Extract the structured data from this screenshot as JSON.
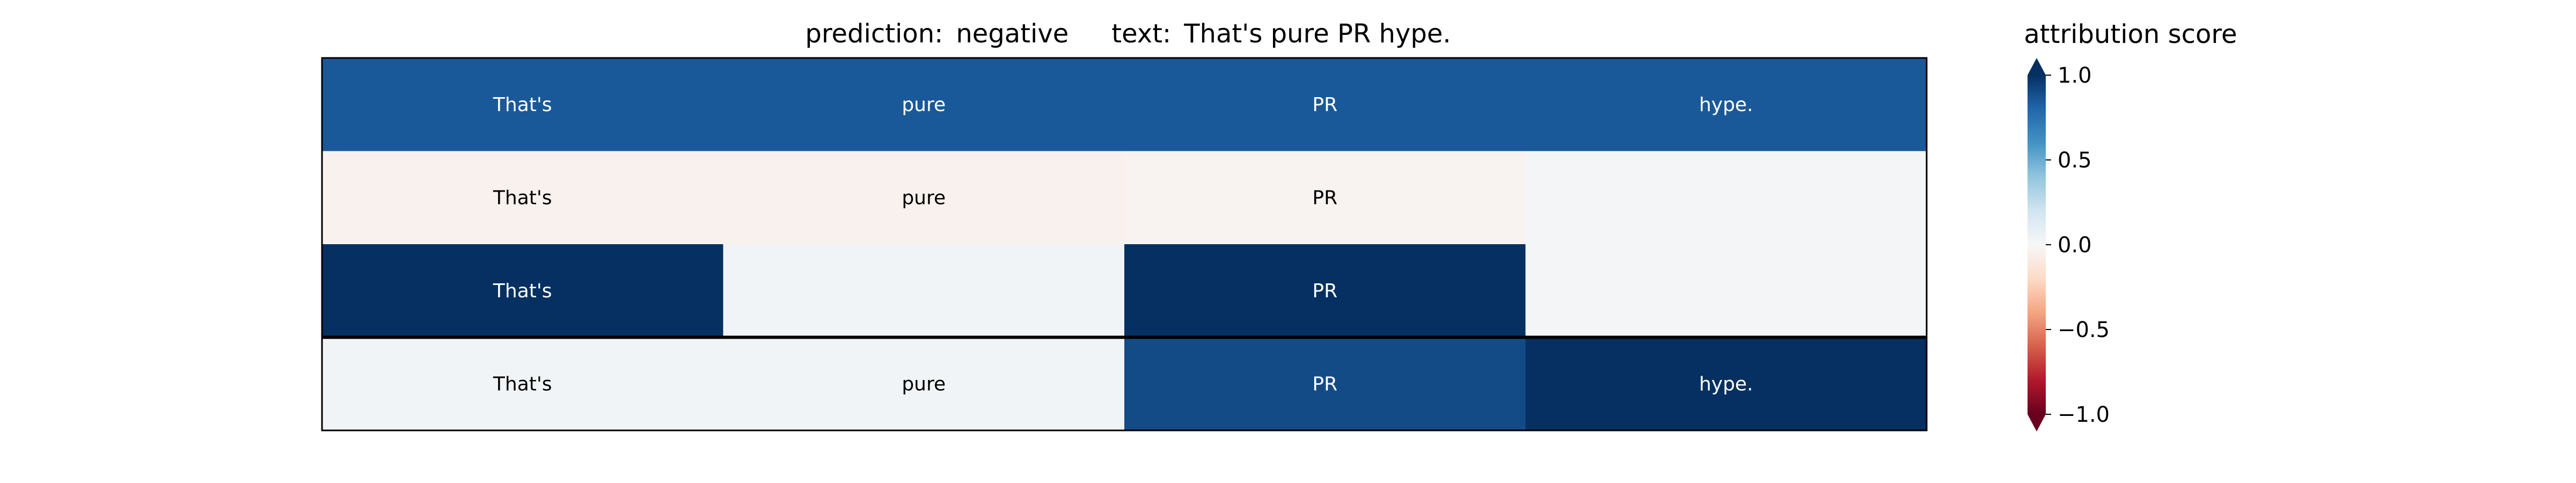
{
  "chart_data": {
    "type": "heatmap",
    "title": {
      "prediction_label": "prediction:",
      "prediction_value": "negative",
      "text_label": "text:",
      "text_value": "That's pure PR hype."
    },
    "tokens": [
      "That's",
      "pure",
      "PR",
      "hype."
    ],
    "rows": [
      {
        "labels": [
          "That's",
          "pure",
          "PR",
          "hype."
        ],
        "values": [
          0.85,
          0.85,
          0.85,
          0.85
        ]
      },
      {
        "labels": [
          "That's",
          "pure",
          "PR",
          ""
        ],
        "values": [
          -0.04,
          -0.04,
          -0.03,
          0.02
        ]
      },
      {
        "labels": [
          "That's",
          "",
          "PR",
          ""
        ],
        "values": [
          1.0,
          0.03,
          1.0,
          0.02
        ]
      },
      {
        "labels": [
          "That's",
          "pure",
          "PR",
          "hype."
        ],
        "values": [
          0.03,
          0.03,
          0.9,
          1.0
        ]
      }
    ],
    "separator_after_row": 2,
    "colorbar": {
      "title": "attribution score",
      "colormap": "RdBu",
      "vmin": -1.0,
      "vmax": 1.0,
      "ticks": [
        1.0,
        0.5,
        0.0,
        -0.5,
        -1.0
      ],
      "tick_labels": [
        "1.0",
        "0.5",
        "0.0",
        "−0.5",
        "−1.0"
      ],
      "extend": "both"
    },
    "colors": {
      "dark_blue": "#053061",
      "dark_red": "#67001f",
      "neutral": "#f7f7f7"
    }
  }
}
